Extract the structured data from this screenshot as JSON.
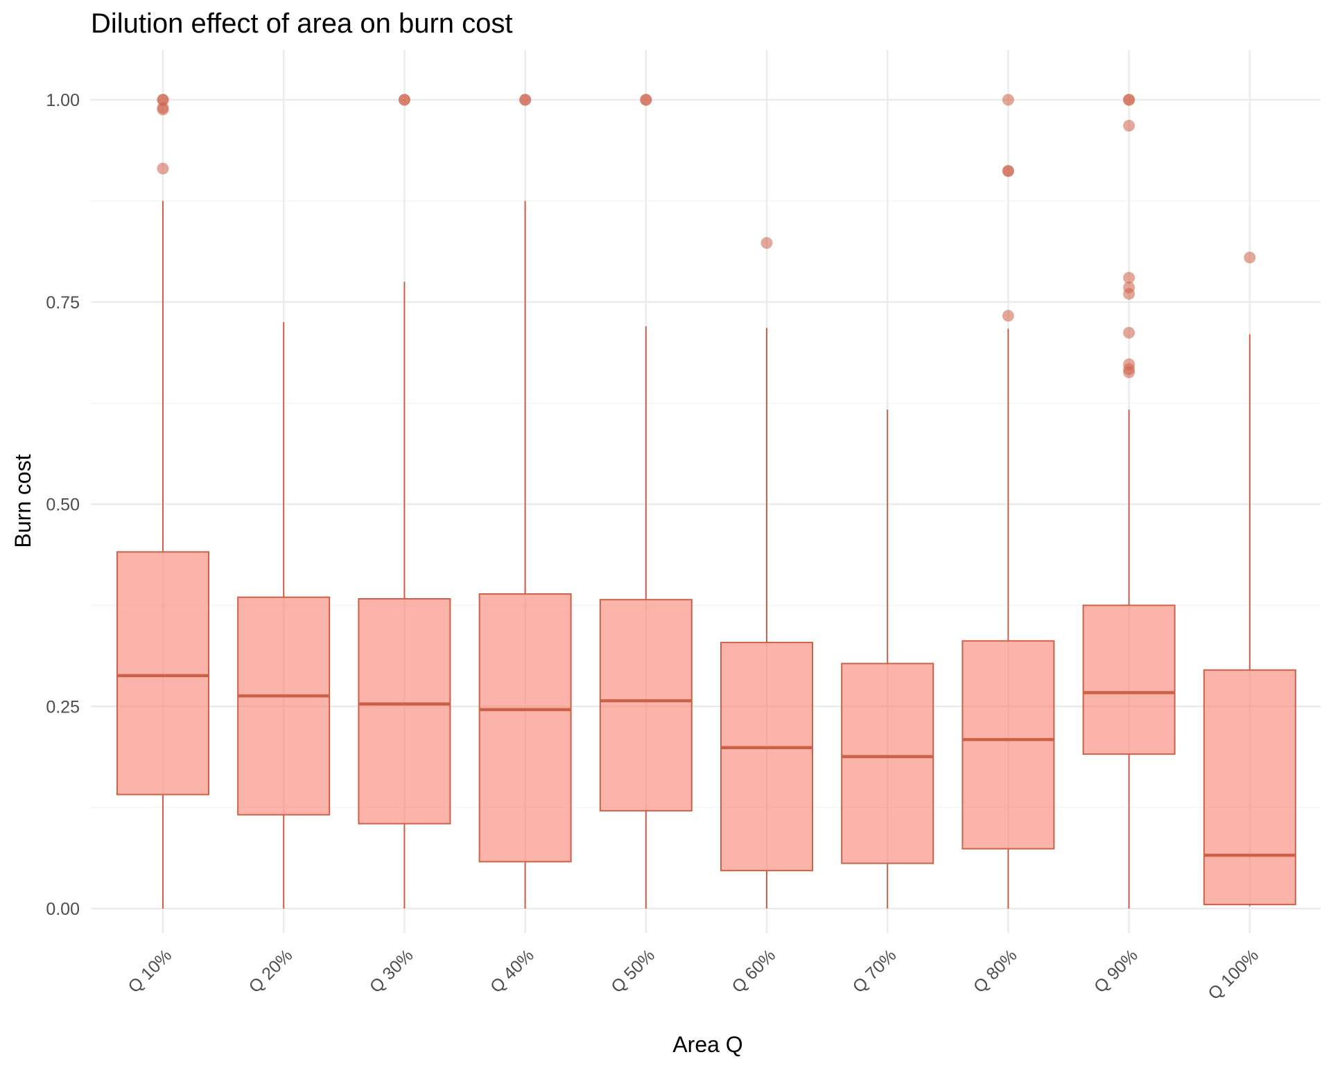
{
  "chart_data": {
    "type": "boxplot",
    "title": "Dilution effect of area on burn cost",
    "xlabel": "Area Q",
    "ylabel": "Burn cost",
    "ylim": [
      -0.05,
      1.05
    ],
    "y_ticks": [
      "0.00",
      "0.25",
      "0.50",
      "0.75",
      "1.00"
    ],
    "y_tick_values": [
      0,
      0.25,
      0.5,
      0.75,
      1.0
    ],
    "grid": true,
    "legend": "none",
    "colors": {
      "box_fill": "#fa8072",
      "box_stroke": "#cd6148",
      "median": "#cd6148",
      "outlier": "#cd6148"
    },
    "categories": [
      "Q 10%",
      "Q 20%",
      "Q 30%",
      "Q 40%",
      "Q 50%",
      "Q 60%",
      "Q 70%",
      "Q 80%",
      "Q 90%",
      "Q 100%"
    ],
    "boxes": [
      {
        "category": "Q 10%",
        "min": 0.0,
        "q1": 0.141,
        "median": 0.288,
        "q3": 0.441,
        "max": 0.875,
        "outliers": [
          1.0,
          1.0,
          0.99,
          0.988,
          0.915
        ]
      },
      {
        "category": "Q 20%",
        "min": 0.0,
        "q1": 0.116,
        "median": 0.263,
        "q3": 0.385,
        "max": 0.725,
        "outliers": []
      },
      {
        "category": "Q 30%",
        "min": 0.0,
        "q1": 0.105,
        "median": 0.253,
        "q3": 0.383,
        "max": 0.775,
        "outliers": [
          1.0,
          1.0
        ]
      },
      {
        "category": "Q 40%",
        "min": 0.0,
        "q1": 0.058,
        "median": 0.246,
        "q3": 0.389,
        "max": 0.875,
        "outliers": [
          1.0,
          1.0
        ]
      },
      {
        "category": "Q 50%",
        "min": 0.0,
        "q1": 0.121,
        "median": 0.257,
        "q3": 0.382,
        "max": 0.72,
        "outliers": [
          1.0,
          1.0
        ]
      },
      {
        "category": "Q 60%",
        "min": 0.0,
        "q1": 0.047,
        "median": 0.199,
        "q3": 0.329,
        "max": 0.718,
        "outliers": [
          0.823
        ]
      },
      {
        "category": "Q 70%",
        "min": 0.0,
        "q1": 0.056,
        "median": 0.188,
        "q3": 0.303,
        "max": 0.617,
        "outliers": []
      },
      {
        "category": "Q 80%",
        "min": 0.0,
        "q1": 0.074,
        "median": 0.209,
        "q3": 0.331,
        "max": 0.717,
        "outliers": [
          1.0,
          0.912,
          0.912,
          0.733
        ]
      },
      {
        "category": "Q 90%",
        "min": 0.0,
        "q1": 0.191,
        "median": 0.267,
        "q3": 0.375,
        "max": 0.617,
        "outliers": [
          1.0,
          1.0,
          0.968,
          0.78,
          0.768,
          0.76,
          0.712,
          0.673,
          0.667,
          0.663
        ]
      },
      {
        "category": "Q 100%",
        "min": 0.003,
        "q1": 0.005,
        "median": 0.066,
        "q3": 0.295,
        "max": 0.71,
        "outliers": [
          0.805
        ]
      }
    ]
  }
}
